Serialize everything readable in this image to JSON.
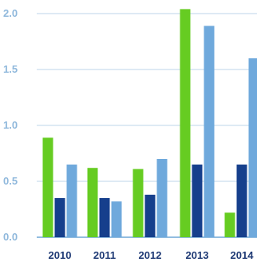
{
  "chart_data": {
    "type": "bar",
    "title": "",
    "xlabel": "",
    "ylabel": "",
    "categories": [
      "2010",
      "2011",
      "2012",
      "2013",
      "2014"
    ],
    "series": [
      {
        "color": "#66cc22",
        "values": [
          0.89,
          0.62,
          0.61,
          2.04,
          0.22
        ]
      },
      {
        "color": "#163f8c",
        "values": [
          0.35,
          0.35,
          0.38,
          0.65,
          0.65
        ]
      },
      {
        "color": "#6fa9dc",
        "values": [
          0.65,
          0.32,
          0.7,
          1.89,
          1.6
        ]
      }
    ],
    "ylim": [
      0,
      2.0
    ],
    "yticks": [
      "0.0",
      "0.5",
      "1.0",
      "1.5",
      "2.0"
    ],
    "grid": true,
    "legend": "none"
  }
}
